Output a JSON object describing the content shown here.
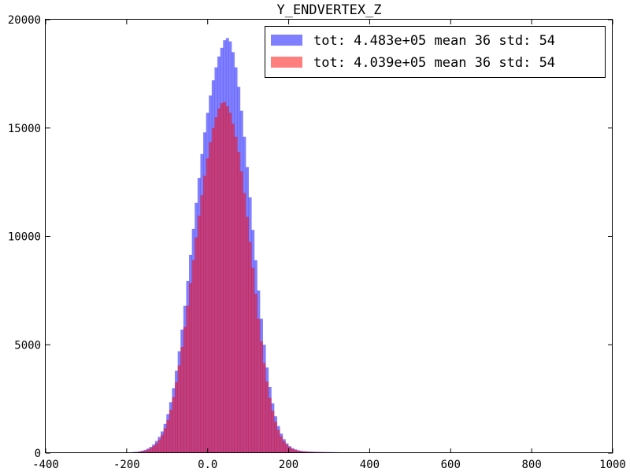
{
  "chart_data": {
    "type": "bar",
    "title": "Y_ENDVERTEX_Z",
    "xlabel": "",
    "ylabel": "",
    "xlim": [
      -400,
      1000
    ],
    "ylim": [
      0,
      20000
    ],
    "xticks": [
      -400,
      -200,
      0.0,
      200,
      400,
      600,
      800,
      1000
    ],
    "xtick_labels": [
      "-400",
      "-200",
      "0.0",
      "200",
      "400",
      "600",
      "800",
      "1000"
    ],
    "yticks": [
      0,
      5000,
      10000,
      15000,
      20000
    ],
    "ytick_labels": [
      "0",
      "5000",
      "10000",
      "15000",
      "20000"
    ],
    "grid": false,
    "legend_position": "top-right",
    "bin_width": 7,
    "series": [
      {
        "name": "tot: 4.483e+05 mean 36 std: 54",
        "color": "#0000ff",
        "opacity": 0.5,
        "bins": [
          [
            -207,
            20
          ],
          [
            -200,
            30
          ],
          [
            -193,
            40
          ],
          [
            -186,
            50
          ],
          [
            -179,
            60
          ],
          [
            -172,
            80
          ],
          [
            -165,
            110
          ],
          [
            -158,
            150
          ],
          [
            -151,
            210
          ],
          [
            -144,
            290
          ],
          [
            -137,
            400
          ],
          [
            -130,
            560
          ],
          [
            -123,
            750
          ],
          [
            -116,
            1000
          ],
          [
            -109,
            1350
          ],
          [
            -102,
            1800
          ],
          [
            -95,
            2350
          ],
          [
            -88,
            3000
          ],
          [
            -81,
            3800
          ],
          [
            -74,
            4700
          ],
          [
            -67,
            5700
          ],
          [
            -60,
            6800
          ],
          [
            -53,
            7950
          ],
          [
            -46,
            9150
          ],
          [
            -39,
            10350
          ],
          [
            -32,
            11550
          ],
          [
            -25,
            12700
          ],
          [
            -18,
            13800
          ],
          [
            -11,
            14800
          ],
          [
            -4,
            15700
          ],
          [
            3,
            16500
          ],
          [
            10,
            17200
          ],
          [
            17,
            17800
          ],
          [
            24,
            18300
          ],
          [
            31,
            18700
          ],
          [
            38,
            19050
          ],
          [
            45,
            19150
          ],
          [
            52,
            19000
          ],
          [
            59,
            18500
          ],
          [
            66,
            17800
          ],
          [
            73,
            16900
          ],
          [
            80,
            15800
          ],
          [
            87,
            14600
          ],
          [
            94,
            13200
          ],
          [
            101,
            11800
          ],
          [
            108,
            10300
          ],
          [
            115,
            8900
          ],
          [
            122,
            7500
          ],
          [
            129,
            6200
          ],
          [
            136,
            5000
          ],
          [
            143,
            3950
          ],
          [
            150,
            3050
          ],
          [
            157,
            2300
          ],
          [
            164,
            1700
          ],
          [
            171,
            1250
          ],
          [
            178,
            900
          ],
          [
            185,
            640
          ],
          [
            192,
            450
          ],
          [
            199,
            320
          ],
          [
            206,
            230
          ],
          [
            213,
            170
          ],
          [
            220,
            130
          ],
          [
            227,
            105
          ],
          [
            234,
            90
          ],
          [
            241,
            80
          ],
          [
            248,
            72
          ],
          [
            255,
            66
          ],
          [
            262,
            61
          ],
          [
            269,
            57
          ],
          [
            276,
            54
          ],
          [
            283,
            51
          ],
          [
            290,
            48
          ],
          [
            297,
            46
          ],
          [
            304,
            44
          ],
          [
            311,
            42
          ],
          [
            318,
            40
          ],
          [
            325,
            38
          ],
          [
            332,
            37
          ],
          [
            339,
            36
          ],
          [
            346,
            35
          ],
          [
            353,
            34
          ],
          [
            360,
            33
          ],
          [
            367,
            32
          ],
          [
            374,
            31
          ],
          [
            381,
            31
          ],
          [
            388,
            30
          ],
          [
            395,
            30
          ],
          [
            402,
            29
          ],
          [
            409,
            29
          ],
          [
            416,
            28
          ],
          [
            423,
            28
          ],
          [
            430,
            28
          ],
          [
            437,
            27
          ],
          [
            444,
            30
          ],
          [
            451,
            32
          ],
          [
            458,
            22
          ],
          [
            465,
            20
          ],
          [
            472,
            18
          ],
          [
            479,
            16
          ],
          [
            486,
            15
          ],
          [
            493,
            14
          ],
          [
            500,
            13
          ],
          [
            507,
            12
          ],
          [
            514,
            11
          ],
          [
            521,
            10
          ],
          [
            528,
            10
          ],
          [
            535,
            9
          ],
          [
            542,
            16
          ],
          [
            549,
            9
          ],
          [
            556,
            8
          ],
          [
            563,
            8
          ],
          [
            570,
            8
          ],
          [
            577,
            7
          ],
          [
            584,
            7
          ],
          [
            591,
            7
          ],
          [
            598,
            6
          ],
          [
            605,
            6
          ],
          [
            612,
            6
          ],
          [
            619,
            5
          ],
          [
            626,
            5
          ],
          [
            633,
            5
          ],
          [
            640,
            5
          ],
          [
            647,
            5
          ],
          [
            654,
            4
          ],
          [
            661,
            4
          ],
          [
            668,
            4
          ],
          [
            675,
            12
          ],
          [
            682,
            4
          ],
          [
            689,
            3
          ],
          [
            696,
            3
          ],
          [
            703,
            3
          ],
          [
            710,
            3
          ],
          [
            717,
            3
          ],
          [
            724,
            3
          ],
          [
            731,
            3
          ],
          [
            738,
            2
          ]
        ]
      },
      {
        "name": "tot: 4.039e+05 mean 36 std: 54",
        "color": "#ff0000",
        "opacity": 0.5,
        "bins": [
          [
            -207,
            15
          ],
          [
            -200,
            22
          ],
          [
            -193,
            30
          ],
          [
            -186,
            38
          ],
          [
            -179,
            48
          ],
          [
            -172,
            65
          ],
          [
            -165,
            90
          ],
          [
            -158,
            120
          ],
          [
            -151,
            170
          ],
          [
            -144,
            240
          ],
          [
            -137,
            330
          ],
          [
            -130,
            460
          ],
          [
            -123,
            630
          ],
          [
            -116,
            850
          ],
          [
            -109,
            1150
          ],
          [
            -102,
            1530
          ],
          [
            -95,
            2000
          ],
          [
            -88,
            2580
          ],
          [
            -81,
            3270
          ],
          [
            -74,
            4050
          ],
          [
            -67,
            4900
          ],
          [
            -60,
            5820
          ],
          [
            -53,
            6800
          ],
          [
            -46,
            7850
          ],
          [
            -39,
            8900
          ],
          [
            -32,
            9950
          ],
          [
            -25,
            10950
          ],
          [
            -18,
            11900
          ],
          [
            -11,
            12800
          ],
          [
            -4,
            13600
          ],
          [
            3,
            14350
          ],
          [
            10,
            15000
          ],
          [
            17,
            15500
          ],
          [
            24,
            15900
          ],
          [
            31,
            16150
          ],
          [
            38,
            16200
          ],
          [
            45,
            16000
          ],
          [
            52,
            15700
          ],
          [
            59,
            15200
          ],
          [
            66,
            14600
          ],
          [
            73,
            13900
          ],
          [
            80,
            13000
          ],
          [
            87,
            12000
          ],
          [
            94,
            10900
          ],
          [
            101,
            9750
          ],
          [
            108,
            8550
          ],
          [
            115,
            7350
          ],
          [
            122,
            6200
          ],
          [
            129,
            5150
          ],
          [
            136,
            4150
          ],
          [
            143,
            3300
          ],
          [
            150,
            2550
          ],
          [
            157,
            1950
          ],
          [
            164,
            1450
          ],
          [
            171,
            1070
          ],
          [
            178,
            770
          ],
          [
            185,
            550
          ],
          [
            192,
            390
          ],
          [
            199,
            280
          ],
          [
            206,
            200
          ],
          [
            213,
            150
          ],
          [
            220,
            115
          ],
          [
            227,
            92
          ],
          [
            234,
            78
          ],
          [
            241,
            69
          ],
          [
            248,
            62
          ],
          [
            255,
            57
          ],
          [
            262,
            53
          ],
          [
            269,
            50
          ],
          [
            276,
            47
          ],
          [
            283,
            44
          ],
          [
            290,
            42
          ],
          [
            297,
            40
          ],
          [
            304,
            38
          ],
          [
            311,
            36
          ],
          [
            318,
            35
          ],
          [
            325,
            33
          ],
          [
            332,
            32
          ],
          [
            339,
            31
          ],
          [
            346,
            30
          ],
          [
            353,
            29
          ],
          [
            360,
            28
          ],
          [
            367,
            28
          ],
          [
            374,
            27
          ],
          [
            381,
            27
          ],
          [
            388,
            26
          ],
          [
            395,
            26
          ],
          [
            402,
            25
          ],
          [
            409,
            25
          ],
          [
            416,
            24
          ],
          [
            423,
            24
          ],
          [
            430,
            24
          ],
          [
            437,
            23
          ],
          [
            444,
            26
          ],
          [
            451,
            28
          ],
          [
            458,
            19
          ],
          [
            465,
            17
          ],
          [
            472,
            15
          ],
          [
            479,
            14
          ],
          [
            486,
            13
          ],
          [
            493,
            12
          ],
          [
            500,
            11
          ],
          [
            507,
            10
          ],
          [
            514,
            10
          ],
          [
            521,
            9
          ],
          [
            528,
            9
          ],
          [
            535,
            8
          ],
          [
            542,
            14
          ],
          [
            549,
            8
          ],
          [
            556,
            7
          ],
          [
            563,
            7
          ],
          [
            570,
            7
          ],
          [
            577,
            6
          ],
          [
            584,
            6
          ],
          [
            591,
            6
          ],
          [
            598,
            5
          ],
          [
            605,
            5
          ],
          [
            612,
            5
          ],
          [
            619,
            4
          ],
          [
            626,
            4
          ],
          [
            633,
            4
          ],
          [
            640,
            4
          ],
          [
            647,
            4
          ],
          [
            654,
            3
          ],
          [
            661,
            3
          ],
          [
            668,
            3
          ],
          [
            675,
            10
          ],
          [
            682,
            3
          ],
          [
            689,
            3
          ],
          [
            696,
            3
          ],
          [
            703,
            2
          ],
          [
            710,
            2
          ],
          [
            717,
            2
          ],
          [
            724,
            2
          ],
          [
            731,
            2
          ],
          [
            738,
            2
          ]
        ]
      }
    ]
  }
}
